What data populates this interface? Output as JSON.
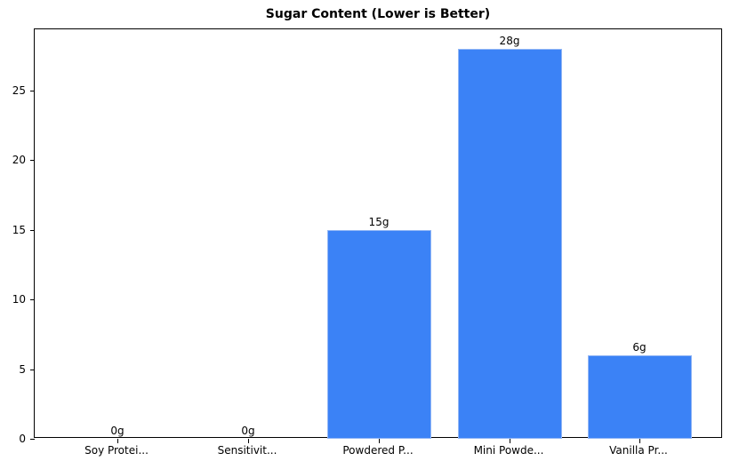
{
  "chart_data": {
    "type": "bar",
    "title": "Sugar Content (Lower is Better)",
    "xlabel": "",
    "ylabel": "",
    "categories": [
      "Soy Protei...",
      "Sensitivit...",
      "Powdered P...",
      "Mini Powde...",
      "Vanilla Pr..."
    ],
    "values": [
      0,
      0,
      15,
      28,
      6
    ],
    "value_labels": [
      "0g",
      "0g",
      "15g",
      "28g",
      "6g"
    ],
    "ylim": [
      0,
      29.4
    ],
    "yticks": [
      0,
      5,
      10,
      15,
      20,
      25
    ],
    "grid": false,
    "bar_color": "#3b82f6"
  }
}
